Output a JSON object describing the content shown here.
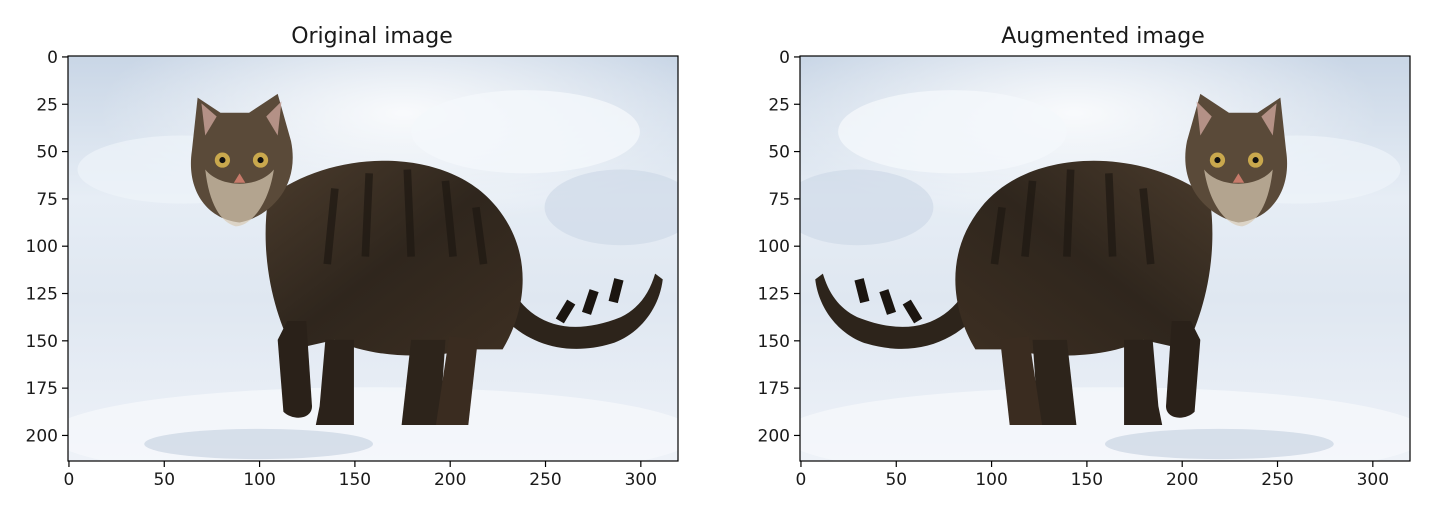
{
  "chart_data": [
    {
      "type": "image",
      "title": "Original image",
      "xlim": [
        -0.5,
        319.5
      ],
      "ylim": [
        213.5,
        -0.5
      ],
      "xticks": [
        0,
        50,
        100,
        150,
        200,
        250,
        300
      ],
      "yticks": [
        0,
        25,
        50,
        75,
        100,
        125,
        150,
        175,
        200
      ],
      "image_content": "tabby cat standing on snow, facing left",
      "flipped": false
    },
    {
      "type": "image",
      "title": "Augmented image",
      "xlim": [
        -0.5,
        319.5
      ],
      "ylim": [
        213.5,
        -0.5
      ],
      "xticks": [
        0,
        50,
        100,
        150,
        200,
        250,
        300
      ],
      "yticks": [
        0,
        25,
        50,
        75,
        100,
        125,
        150,
        175,
        200
      ],
      "image_content": "tabby cat standing on snow, mirrored horizontally",
      "flipped": true
    }
  ]
}
